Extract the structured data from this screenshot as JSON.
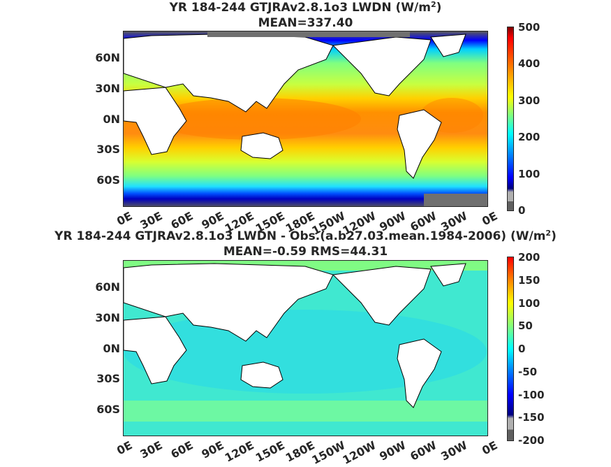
{
  "panels": [
    {
      "title_line1": "YR 184-244 GTJRAv2.8.1o3 LWDN (W/m",
      "title_sup": "2",
      "title_close": ")",
      "title_line2": "MEAN=337.40",
      "colorbar_labels": [
        "500",
        "400",
        "300",
        "200",
        "100",
        "0"
      ],
      "ocean_base": "#f2a020"
    },
    {
      "title_line1": "YR 184-244 GTJRAv2.8.1o3 LWDN - Obs.(a.b27.03.mean.1984-2006) (W/m",
      "title_sup": "2",
      "title_close": ")",
      "title_line2": "MEAN=-0.59 RMS=44.31",
      "colorbar_labels": [
        "200",
        "150",
        "100",
        "50",
        "0",
        "-50",
        "-100",
        "-150",
        "-200"
      ],
      "ocean_base": "#3fe0d0"
    }
  ],
  "lat_labels": [
    "60N",
    "30N",
    "0N",
    "30S",
    "60S"
  ],
  "lon_labels": [
    "0E",
    "30E",
    "60E",
    "90E",
    "120E",
    "150E",
    "180E",
    "150W",
    "120W",
    "90W",
    "60W",
    "30W",
    "0E"
  ],
  "colors": {
    "land": "#ffffff",
    "coast": "#000000",
    "missing": "#707070",
    "colormap": [
      "#00007f",
      "#0000ff",
      "#0080ff",
      "#00ffff",
      "#80ff80",
      "#ffff00",
      "#ff8000",
      "#ff0000",
      "#7f0000"
    ]
  }
}
